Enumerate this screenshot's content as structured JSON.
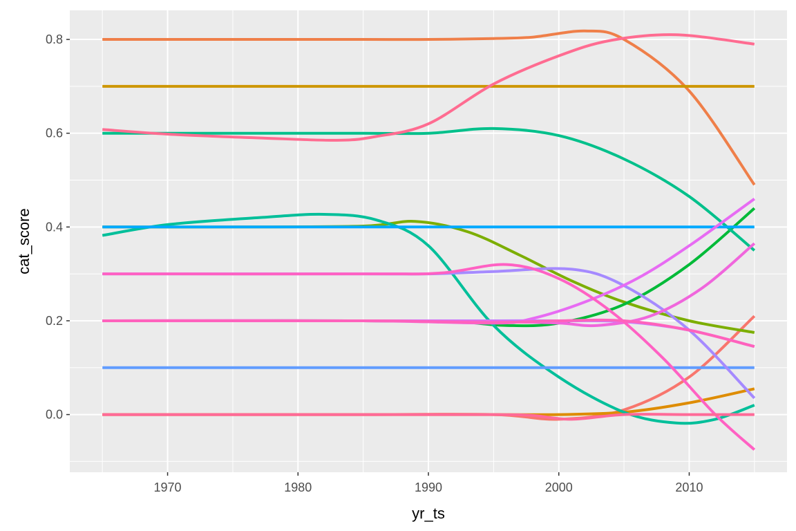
{
  "chart_data": {
    "type": "line",
    "title": "",
    "xlabel": "yr_ts",
    "ylabel": "cat_score",
    "xlim": [
      1962.5,
      2017.5
    ],
    "ylim": [
      -0.123,
      0.862
    ],
    "x_ticks": [
      1970,
      1980,
      1990,
      2000,
      2010
    ],
    "x_tick_labels": [
      "1970",
      "1980",
      "1990",
      "2000",
      "2010"
    ],
    "y_ticks": [
      0.0,
      0.2,
      0.4,
      0.6,
      0.8
    ],
    "y_tick_labels": [
      "0.0",
      "0.2",
      "0.4",
      "0.6",
      "0.8"
    ],
    "grid": true,
    "legend": "none",
    "background": "#EBEBEB",
    "series": [
      {
        "color": "#F8766D",
        "x": [
          1965,
          1975,
          1985,
          1995,
          2000,
          2005,
          2010,
          2015
        ],
        "values": [
          0.0,
          0.0,
          0.0,
          0.0,
          -0.01,
          0.01,
          0.08,
          0.21
        ]
      },
      {
        "color": "#EF7F49",
        "x": [
          1965,
          1975,
          1985,
          1990,
          1995,
          1998,
          2002,
          2005,
          2010,
          2015
        ],
        "values": [
          0.8,
          0.8,
          0.8,
          0.8,
          0.802,
          0.805,
          0.818,
          0.8,
          0.69,
          0.49
        ]
      },
      {
        "color": "#DE8C00",
        "x": [
          1965,
          1975,
          1985,
          1995,
          2000,
          2005,
          2010,
          2015
        ],
        "values": [
          0.0,
          0.0,
          0.0,
          0.0,
          0.0,
          0.005,
          0.025,
          0.055
        ]
      },
      {
        "color": "#CD9600",
        "x": [
          1965,
          2015
        ],
        "values": [
          0.7,
          0.7
        ]
      },
      {
        "color": "#7CAE00",
        "x": [
          1965,
          1975,
          1985,
          1989,
          1993,
          1997,
          2001,
          2005,
          2010,
          2015
        ],
        "values": [
          0.4,
          0.4,
          0.402,
          0.412,
          0.39,
          0.34,
          0.285,
          0.24,
          0.2,
          0.175
        ]
      },
      {
        "color": "#00BA38",
        "x": [
          1965,
          1975,
          1985,
          1992,
          1996,
          2000,
          2005,
          2010,
          2015
        ],
        "values": [
          0.2,
          0.2,
          0.2,
          0.198,
          0.19,
          0.195,
          0.235,
          0.32,
          0.44
        ]
      },
      {
        "color": "#00C08B",
        "x": [
          1965,
          1975,
          1985,
          1990,
          1995,
          2000,
          2005,
          2010,
          2015
        ],
        "values": [
          0.6,
          0.6,
          0.6,
          0.6,
          0.61,
          0.595,
          0.545,
          0.465,
          0.35
        ]
      },
      {
        "color": "#00BF9A",
        "x": [
          1965,
          1970,
          1977,
          1982,
          1986,
          1990,
          1995,
          2000,
          2005,
          2009,
          2012,
          2015
        ],
        "values": [
          0.382,
          0.405,
          0.42,
          0.427,
          0.415,
          0.36,
          0.19,
          0.08,
          0.005,
          -0.018,
          -0.01,
          0.02
        ]
      },
      {
        "color": "#00A9FF",
        "x": [
          1965,
          2015
        ],
        "values": [
          0.4,
          0.4
        ]
      },
      {
        "color": "#619CFF",
        "x": [
          1965,
          2015
        ],
        "values": [
          0.1,
          0.1
        ]
      },
      {
        "color": "#A58AFF",
        "x": [
          1965,
          1985,
          1990,
          1995,
          2001,
          2005,
          2010,
          2015
        ],
        "values": [
          0.3,
          0.3,
          0.3,
          0.305,
          0.31,
          0.275,
          0.18,
          0.035
        ]
      },
      {
        "color": "#C77CFF",
        "x": [
          1965,
          1985,
          1995,
          2000,
          2005,
          2010,
          2015
        ],
        "values": [
          0.2,
          0.2,
          0.2,
          0.2,
          0.198,
          0.18,
          0.145
        ]
      },
      {
        "color": "#E76BF3",
        "x": [
          1965,
          1985,
          1995,
          1998,
          2002,
          2006,
          2010,
          2015
        ],
        "values": [
          0.2,
          0.2,
          0.195,
          0.205,
          0.24,
          0.29,
          0.36,
          0.46
        ]
      },
      {
        "color": "#F066DC",
        "x": [
          1965,
          1985,
          1995,
          2000,
          2003,
          2007,
          2011,
          2015
        ],
        "values": [
          0.2,
          0.2,
          0.198,
          0.195,
          0.19,
          0.21,
          0.27,
          0.365
        ]
      },
      {
        "color": "#FF61C3",
        "x": [
          1965,
          1985,
          1991,
          1996,
          2000,
          2004,
          2008,
          2012,
          2015
        ],
        "values": [
          0.3,
          0.3,
          0.302,
          0.32,
          0.29,
          0.22,
          0.12,
          0.0,
          -0.075
        ]
      },
      {
        "color": "#FF62BC",
        "x": [
          1965,
          1985,
          1990,
          1995,
          2000,
          2005,
          2010,
          2015
        ],
        "values": [
          0.2,
          0.2,
          0.198,
          0.196,
          0.2,
          0.2,
          0.18,
          0.145
        ]
      },
      {
        "color": "#FF6C91",
        "x": [
          1965,
          1970,
          1977,
          1983,
          1986,
          1990,
          1995,
          2000,
          2004,
          2009,
          2015
        ],
        "values": [
          0.608,
          0.598,
          0.59,
          0.585,
          0.593,
          0.62,
          0.705,
          0.765,
          0.798,
          0.81,
          0.79
        ]
      },
      {
        "color": "#FF6A98",
        "x": [
          1965,
          1985,
          1995,
          1998,
          2001,
          2005,
          2010,
          2015
        ],
        "values": [
          0.0,
          0.0,
          0.0,
          -0.002,
          -0.01,
          0.0,
          0.0,
          0.0
        ]
      }
    ]
  }
}
